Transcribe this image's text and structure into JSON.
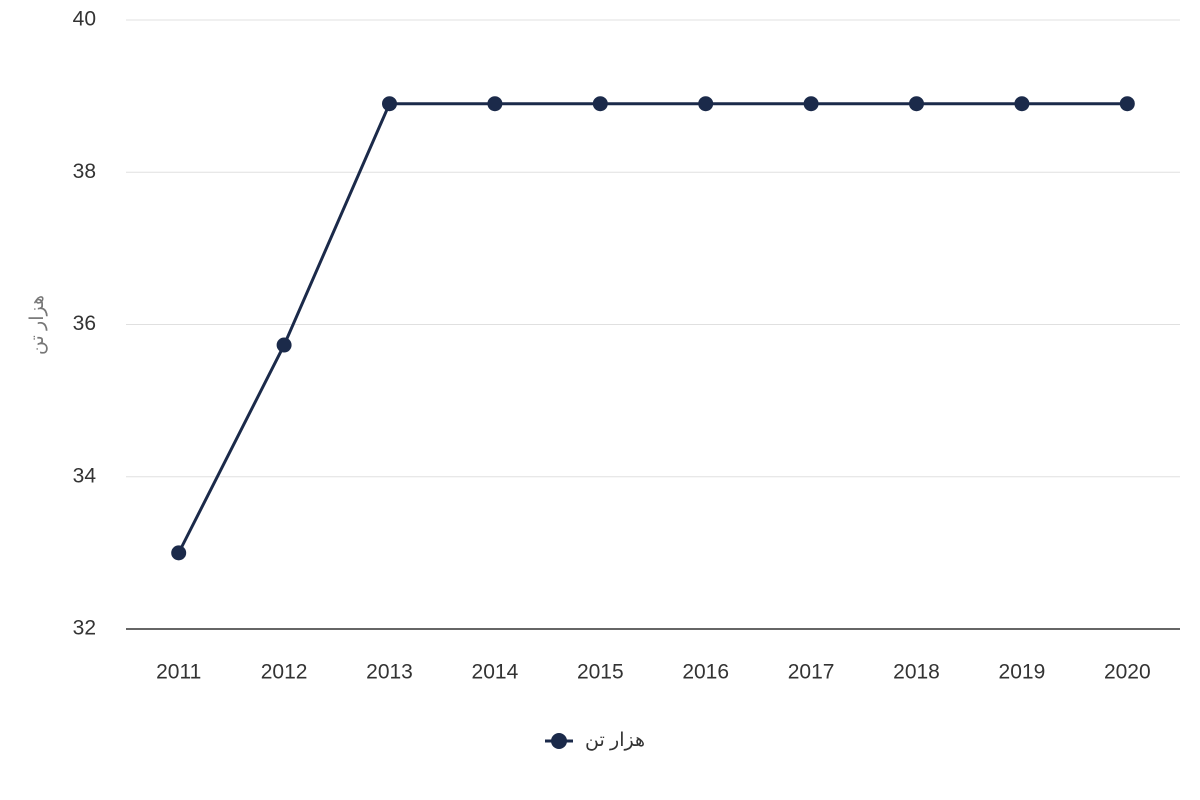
{
  "chart_data": {
    "type": "line",
    "y_label": "هزار تن",
    "categories": [
      "2011",
      "2012",
      "2013",
      "2014",
      "2015",
      "2016",
      "2017",
      "2018",
      "2019",
      "2020"
    ],
    "series": [
      {
        "name": "هزار تن",
        "color": "#1b2a4a",
        "values": [
          33,
          35.73,
          38.9,
          38.9,
          38.9,
          38.9,
          38.9,
          38.9,
          38.9,
          38.9
        ]
      }
    ],
    "ylim": [
      32,
      40
    ],
    "yticks": [
      32,
      34,
      36,
      38,
      40
    ],
    "grid": true,
    "legend": "bottom"
  }
}
